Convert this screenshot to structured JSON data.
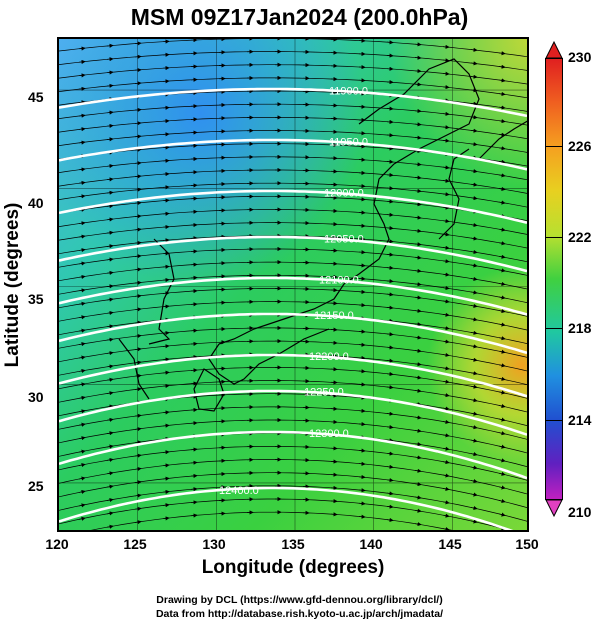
{
  "title": "MSM 09Z17Jan2024 (200.0hPa)",
  "x_axis": {
    "label": "Longitude (degrees)",
    "ticks": [
      "120",
      "125",
      "130",
      "135",
      "140",
      "145",
      "150"
    ],
    "range": [
      120,
      150
    ]
  },
  "y_axis": {
    "label": "Latitude  (degrees)",
    "ticks": [
      "25",
      "30",
      "35",
      "40",
      "45"
    ],
    "range": [
      22.4,
      47.6
    ]
  },
  "colorbar": {
    "ticks": [
      "230",
      "226",
      "222",
      "218",
      "214",
      "210"
    ],
    "range": [
      210,
      230
    ]
  },
  "contour_labels": [
    "11900.0",
    "11950.0",
    "12000.0",
    "12050.0",
    "12100.0",
    "12150.0",
    "12200.0",
    "12250.0",
    "12300.0",
    "12400.0"
  ],
  "credits": {
    "line1": "Drawing by DCL (https://www.gfd-dennou.org/library/dcl/)",
    "line2": "Data from http://database.rish.kyoto-u.ac.jp/arch/jmadata/"
  },
  "colors": {
    "cold": "#3aa0e8",
    "mid": "#28c860",
    "warm": "#b8d840",
    "hot": "#f0a020",
    "contour": "#ffffff"
  }
}
